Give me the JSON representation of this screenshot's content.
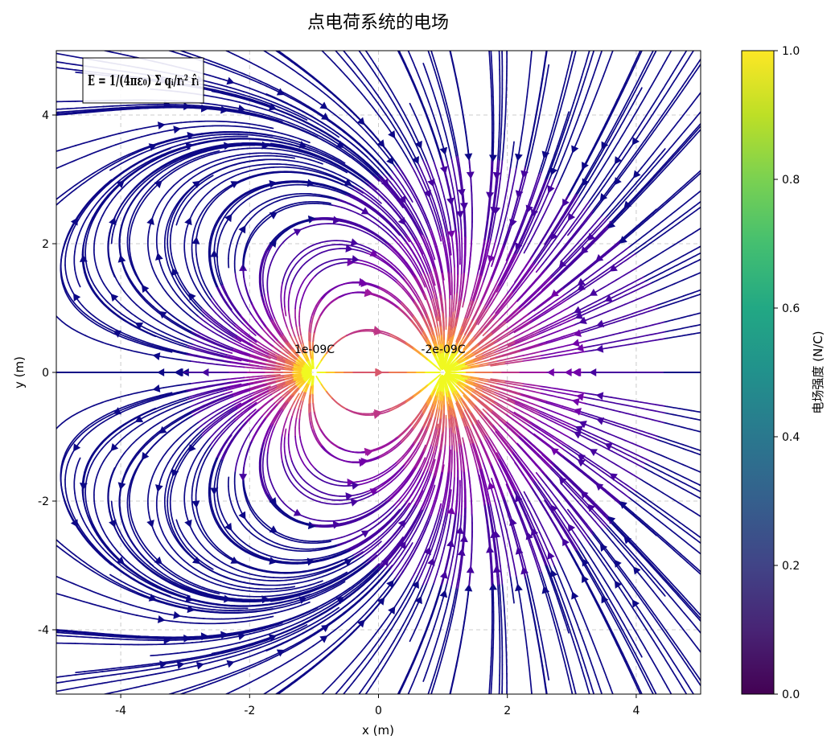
{
  "chart_data": {
    "type": "streamplot",
    "title": "点电荷系统的电场",
    "xlabel": "x (m)",
    "ylabel": "y (m)",
    "xlim": [
      -5,
      5
    ],
    "ylim": [
      -5,
      5
    ],
    "xticks": [
      "-4",
      "-2",
      "0",
      "2",
      "4"
    ],
    "yticks": [
      "-4",
      "-2",
      "0",
      "2",
      "4"
    ],
    "grid": true,
    "formula": "E = 1/(4πε₀) Σ qᵢ/rᵢ² r̂ᵢ",
    "charges": [
      {
        "x": -1,
        "y": 0,
        "q": 1e-09,
        "label": "1e-09C"
      },
      {
        "x": 1,
        "y": 0,
        "q": -2e-09,
        "label": "-2e-09C"
      }
    ],
    "colorbar": {
      "label": "电场强度 (N/C)",
      "min": 0.0,
      "max": 1.0,
      "ticks": [
        "0.0",
        "0.2",
        "0.4",
        "0.6",
        "0.8",
        "1.0"
      ],
      "colormap": "viridis"
    },
    "line_colormap": "plasma"
  }
}
